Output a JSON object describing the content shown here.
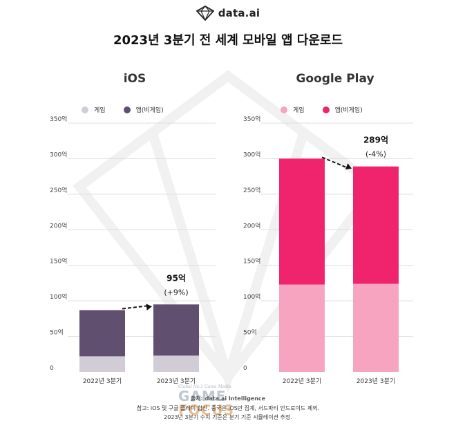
{
  "logo": {
    "text": "data.ai"
  },
  "title": "2023년 3분기 전 세계 모바일 앱 다운로드",
  "colors": {
    "ios_game": "#d2ccd6",
    "ios_app": "#614f70",
    "gp_game": "#f7a4c1",
    "gp_app": "#f0246c"
  },
  "chart_data": [
    {
      "type": "bar",
      "stacked": true,
      "title": "iOS",
      "categories": [
        "2022년 3분기",
        "2023년 3분기"
      ],
      "series": [
        {
          "name": "게임",
          "values": [
            22,
            23
          ]
        },
        {
          "name": "앱(비게임)",
          "values": [
            65,
            72
          ]
        }
      ],
      "ylim": [
        0,
        350
      ],
      "yticks": [
        "0",
        "50억",
        "100억",
        "150억",
        "200억",
        "250억",
        "300억",
        "350억"
      ],
      "annotations": [
        {
          "label": "95억",
          "sublabel": "(+9%)"
        }
      ],
      "legend": "top",
      "grid": true
    },
    {
      "type": "bar",
      "stacked": true,
      "title": "Google Play",
      "categories": [
        "2022년 3분기",
        "2023년 3분기"
      ],
      "series": [
        {
          "name": "게임",
          "values": [
            123,
            124
          ]
        },
        {
          "name": "앱(비게임)",
          "values": [
            177,
            165
          ]
        }
      ],
      "ylim": [
        0,
        350
      ],
      "yticks": [
        "0",
        "50억",
        "100억",
        "150억",
        "200억",
        "250억",
        "300억",
        "350억"
      ],
      "annotations": [
        {
          "label": "289억",
          "sublabel": "(-4%)"
        }
      ],
      "legend": "top",
      "grid": true
    }
  ],
  "footer": {
    "credit": "출처: data.ai Intelligence",
    "note1": "참고: iOS 및 구글 플레이 합산. 중국은 iOS만 집계, 서드파티 안드로이드 제외.",
    "note2": "2023년 3분기 수치 기준은 분기 기준 시뮬레이션 추정."
  },
  "stamp": {
    "small": "Global No.1 Game Media",
    "big_a": "GAME",
    "big_b": "FOCUS"
  }
}
